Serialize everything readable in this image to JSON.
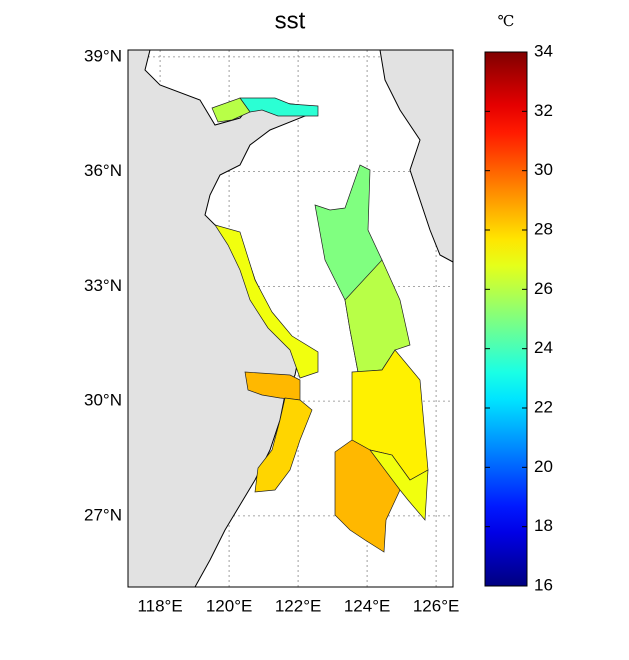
{
  "title": "sst",
  "map": {
    "xlim": [
      117.07,
      126.49
    ],
    "ylim": [
      25.14,
      39.18
    ],
    "xticks": [
      {
        "value": 118,
        "label": "118°E"
      },
      {
        "value": 120,
        "label": "120°E"
      },
      {
        "value": 122,
        "label": "122°E"
      },
      {
        "value": 124,
        "label": "124°E"
      },
      {
        "value": 126,
        "label": "126°E"
      }
    ],
    "yticks": [
      {
        "value": 27,
        "label": "27°N"
      },
      {
        "value": 30,
        "label": "30°N"
      },
      {
        "value": 33,
        "label": "33°N"
      },
      {
        "value": 36,
        "label": "36°N"
      },
      {
        "value": 39,
        "label": "39°N"
      }
    ],
    "grid": true,
    "sst": [
      23.5,
      26,
      27,
      28.5,
      28,
      25,
      26,
      27.5,
      28.5,
      27
    ]
  },
  "colorbar": {
    "unit": "℃",
    "range": [
      16,
      34
    ],
    "ticks": [
      16,
      18,
      20,
      22,
      24,
      26,
      28,
      30,
      32,
      34
    ]
  }
}
